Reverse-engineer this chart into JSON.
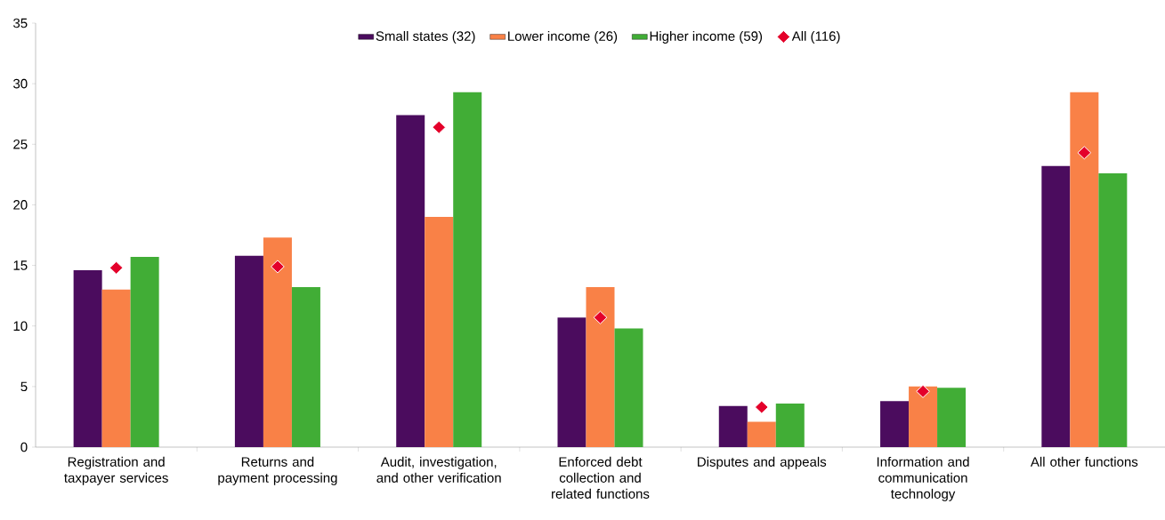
{
  "chart_data": {
    "type": "bar",
    "categories": [
      "Registration and taxpayer services",
      "Returns and payment processing",
      "Audit, investigation, and other verification",
      "Enforced debt collection and related functions",
      "Disputes and appeals",
      "Information and communication technology",
      "All other functions"
    ],
    "series": [
      {
        "name": "Small states (32)",
        "color": "#4b0c5e",
        "values": [
          14.6,
          15.8,
          27.4,
          10.7,
          3.4,
          3.8,
          23.2
        ]
      },
      {
        "name": "Lower income (26)",
        "color": "#f98147",
        "values": [
          13.0,
          17.3,
          19.0,
          13.2,
          2.1,
          5.0,
          29.3
        ]
      },
      {
        "name": "Higher income (59)",
        "color": "#41ad36",
        "values": [
          15.7,
          13.2,
          29.3,
          9.8,
          3.6,
          4.9,
          22.6
        ]
      },
      {
        "name": "All (116)",
        "type": "scatter",
        "marker": "diamond",
        "color": "#e4002b",
        "x": [
          "Registration and taxpayer services",
          "Returns and payment processing",
          "Audit, investigation, and other verification",
          "Enforced debt collection and related functions",
          "Disputes and appeals",
          "Information and communication technology",
          "All other functions"
        ],
        "values": [
          14.8,
          14.9,
          26.4,
          10.7,
          3.3,
          4.6,
          24.3
        ]
      }
    ],
    "ylim": [
      0,
      35
    ],
    "yticks": [
      0,
      5,
      10,
      15,
      20,
      25,
      30,
      35
    ],
    "legend": "top"
  }
}
